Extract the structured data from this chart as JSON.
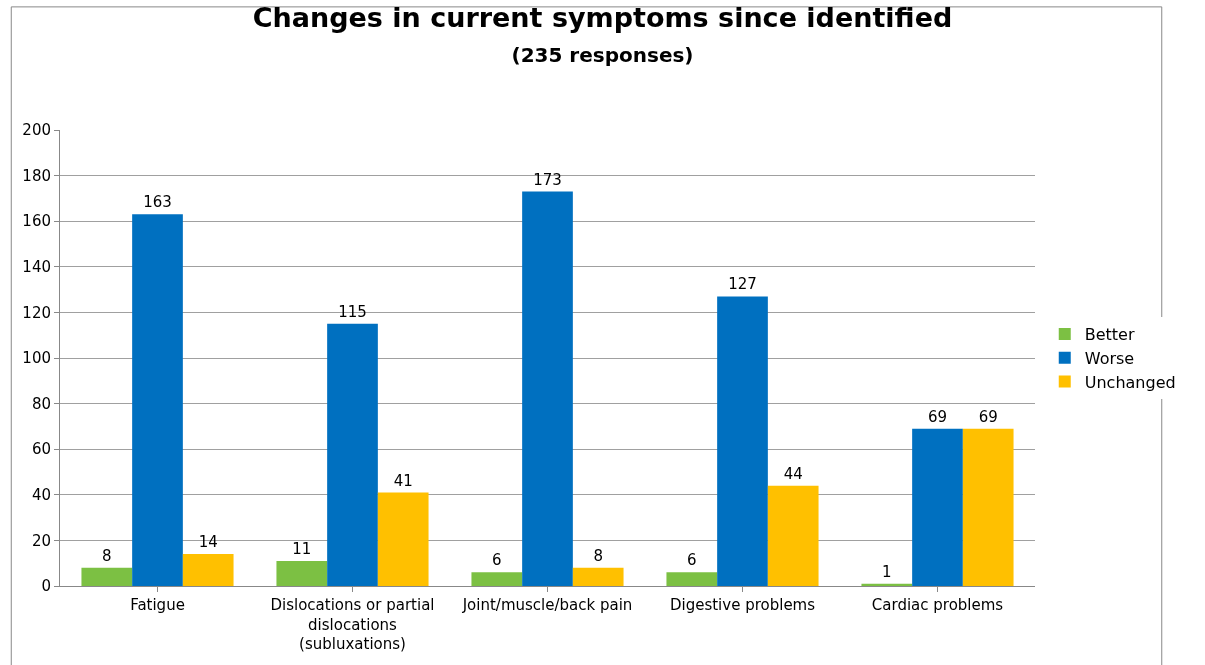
{
  "chart_data": {
    "type": "bar",
    "title": "Changes in current symptoms since identified",
    "subtitle": "(235 responses)",
    "categories": [
      "Fatigue",
      "Dislocations or partial dislocations (subluxations)",
      "Joint/muscle/back pain",
      "Digestive problems",
      "Cardiac problems"
    ],
    "series": [
      {
        "name": "Better",
        "color": "#7cc043",
        "values": [
          8,
          11,
          6,
          6,
          1
        ]
      },
      {
        "name": "Worse",
        "color": "#0070c0",
        "values": [
          163,
          115,
          173,
          127,
          69
        ]
      },
      {
        "name": "Unchanged",
        "color": "#ffc000",
        "values": [
          14,
          41,
          8,
          44,
          69
        ]
      }
    ],
    "ylim": [
      0,
      200
    ],
    "yticks": [
      0,
      20,
      40,
      60,
      80,
      100,
      120,
      140,
      160,
      180,
      200
    ],
    "grid": "y",
    "legend": "right",
    "data_labels": true
  }
}
